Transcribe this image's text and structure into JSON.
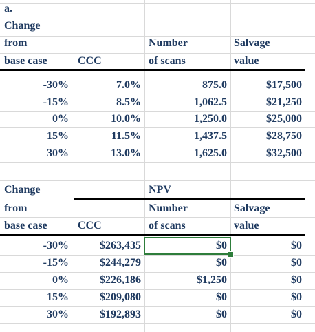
{
  "header_label": "a.",
  "top_table": {
    "row_header": [
      "Change",
      "from",
      "base case"
    ],
    "col_ccc": "CCC",
    "col_number": [
      "Number",
      "of scans"
    ],
    "col_salvage": [
      "Salvage",
      "value"
    ],
    "rows": [
      {
        "change": "-30%",
        "ccc": "7.0%",
        "number": "875.0",
        "salvage": "$17,500"
      },
      {
        "change": "-15%",
        "ccc": "8.5%",
        "number": "1,062.5",
        "salvage": "$21,250"
      },
      {
        "change": "0%",
        "ccc": "10.0%",
        "number": "1,250.0",
        "salvage": "$25,000"
      },
      {
        "change": "15%",
        "ccc": "11.5%",
        "number": "1,437.5",
        "salvage": "$28,750"
      },
      {
        "change": "30%",
        "ccc": "13.0%",
        "number": "1,625.0",
        "salvage": "$32,500"
      }
    ]
  },
  "bottom_table": {
    "row_header": [
      "Change",
      "from",
      "base case"
    ],
    "npv_label": "NPV",
    "col_ccc": "CCC",
    "col_number": [
      "Number",
      "of scans"
    ],
    "col_salvage": [
      "Salvage",
      "value"
    ],
    "rows": [
      {
        "change": "-30%",
        "ccc": "$263,435",
        "number": "$0",
        "salvage": "$0"
      },
      {
        "change": "-15%",
        "ccc": "$244,279",
        "number": "$0",
        "salvage": "$0"
      },
      {
        "change": "0%",
        "ccc": "$226,186",
        "number": "$1,250",
        "salvage": "$0"
      },
      {
        "change": "15%",
        "ccc": "$209,080",
        "number": "$0",
        "salvage": "$0"
      },
      {
        "change": "30%",
        "ccc": "$192,893",
        "number": "$0",
        "salvage": "$0"
      }
    ]
  },
  "selected_cell": "bottom_table.rows.0.number"
}
